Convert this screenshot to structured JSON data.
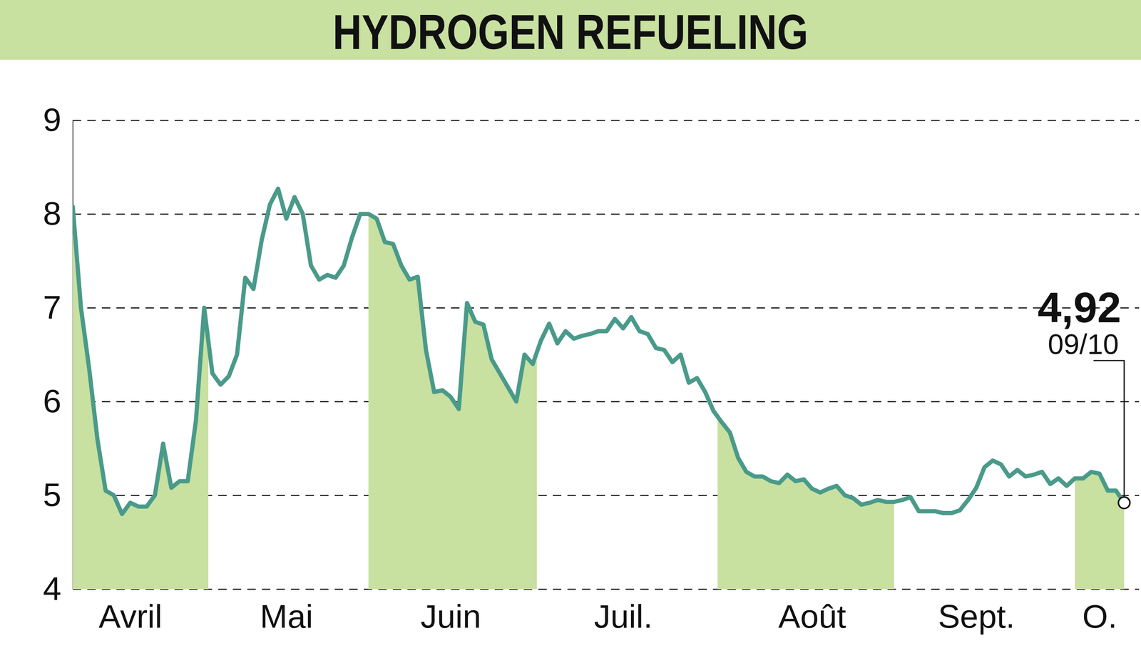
{
  "chart_data": {
    "type": "line",
    "title": "HYDROGEN REFUELING",
    "categories": [
      null,
      null,
      null,
      null,
      null,
      null,
      null,
      "Avril",
      null,
      null,
      null,
      null,
      null,
      null,
      null,
      null,
      null,
      null,
      null,
      null,
      null,
      null,
      null,
      null,
      null,
      null,
      "Mai",
      null,
      null,
      null,
      null,
      null,
      null,
      null,
      null,
      null,
      null,
      null,
      null,
      null,
      null,
      null,
      null,
      null,
      null,
      null,
      "Juin",
      null,
      null,
      null,
      null,
      null,
      null,
      null,
      null,
      null,
      null,
      null,
      null,
      null,
      null,
      null,
      null,
      null,
      null,
      null,
      null,
      "Juil.",
      null,
      null,
      null,
      null,
      null,
      null,
      null,
      null,
      null,
      null,
      null,
      null,
      null,
      null,
      null,
      null,
      null,
      null,
      null,
      null,
      null,
      null,
      "Août",
      null,
      null,
      null,
      null,
      null,
      null,
      null,
      null,
      null,
      null,
      null,
      null,
      null,
      null,
      null,
      null,
      null,
      null,
      null,
      "Sept.",
      null,
      null,
      null,
      null,
      null,
      null,
      null,
      null,
      null,
      null,
      null,
      null,
      null,
      null,
      "O.",
      null,
      null,
      null
    ],
    "values": [
      8.08,
      7.0,
      6.35,
      5.6,
      5.05,
      5.0,
      4.8,
      4.92,
      4.88,
      4.88,
      5.0,
      5.55,
      5.08,
      5.15,
      5.15,
      5.8,
      7.0,
      6.3,
      6.18,
      6.27,
      6.5,
      7.32,
      7.2,
      7.72,
      8.1,
      8.27,
      7.95,
      8.18,
      8.0,
      7.45,
      7.3,
      7.35,
      7.32,
      7.45,
      7.75,
      8.0,
      8.0,
      7.95,
      7.7,
      7.68,
      7.45,
      7.3,
      7.33,
      6.55,
      6.1,
      6.12,
      6.05,
      5.92,
      7.05,
      6.85,
      6.82,
      6.45,
      6.3,
      6.15,
      6.0,
      6.5,
      6.4,
      6.65,
      6.83,
      6.62,
      6.75,
      6.67,
      6.7,
      6.72,
      6.75,
      6.75,
      6.88,
      6.78,
      6.9,
      6.75,
      6.72,
      6.57,
      6.55,
      6.42,
      6.5,
      6.2,
      6.25,
      6.1,
      5.9,
      5.78,
      5.67,
      5.4,
      5.25,
      5.2,
      5.2,
      5.15,
      5.13,
      5.22,
      5.15,
      5.17,
      5.07,
      5.03,
      5.07,
      5.1,
      5.0,
      4.97,
      4.9,
      4.92,
      4.95,
      4.93,
      4.93,
      4.95,
      4.98,
      4.83,
      4.83,
      4.83,
      4.81,
      4.81,
      4.84,
      4.95,
      5.08,
      5.3,
      5.37,
      5.33,
      5.2,
      5.27,
      5.2,
      5.22,
      5.25,
      5.12,
      5.18,
      5.1,
      5.18,
      5.18,
      5.25,
      5.23,
      5.05,
      5.05,
      4.92
    ],
    "color": "#4a9a8a",
    "ylim": [
      4,
      9
    ],
    "yticks": [
      4,
      5,
      6,
      7,
      8,
      9
    ],
    "grid": true,
    "annotations": [
      {
        "text": "4,92"
      },
      {
        "text": "09/10"
      }
    ]
  }
}
